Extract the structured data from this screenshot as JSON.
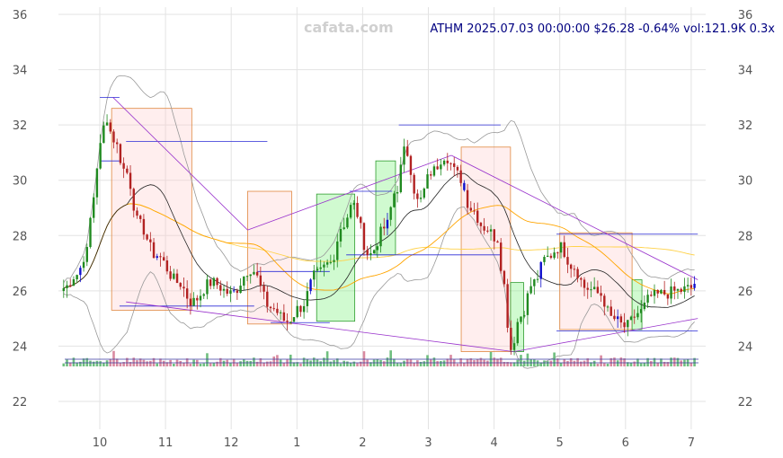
{
  "watermark": "cafata.com",
  "header": "ATHM 2025.07.03 00:00:00 $26.28 -0.64% vol:121.9K 0.3x",
  "chart_data": {
    "type": "candlestick",
    "ticker": "ATHM",
    "ylim": [
      21.2,
      36
    ],
    "y_ticks": [
      22,
      24,
      26,
      28,
      30,
      32,
      34,
      36
    ],
    "x_ticks": [
      {
        "label": "10",
        "month": 0
      },
      {
        "label": "11",
        "month": 1
      },
      {
        "label": "12",
        "month": 2
      },
      {
        "label": "1",
        "month": 3
      },
      {
        "label": "2",
        "month": 4
      },
      {
        "label": "3",
        "month": 5
      },
      {
        "label": "4",
        "month": 6
      },
      {
        "label": "5",
        "month": 7
      },
      {
        "label": "6",
        "month": 8
      },
      {
        "label": "7",
        "month": 9
      }
    ],
    "grid": true,
    "last": {
      "date": "2025.07.03",
      "price": 26.28,
      "change_pct": -0.64,
      "volume": "121.9K",
      "volume_ratio": "0.3x"
    },
    "price_anchors": [
      [
        -0.55,
        26.1
      ],
      [
        -0.35,
        26.6
      ],
      [
        -0.2,
        27.4
      ],
      [
        -0.1,
        29.4
      ],
      [
        0.0,
        31.2
      ],
      [
        0.1,
        32.3
      ],
      [
        0.2,
        31.5
      ],
      [
        0.4,
        30.3
      ],
      [
        0.6,
        28.4
      ],
      [
        0.85,
        27.3
      ],
      [
        1.2,
        26.3
      ],
      [
        1.4,
        25.6
      ],
      [
        1.7,
        26.3
      ],
      [
        2.0,
        25.9
      ],
      [
        2.3,
        26.8
      ],
      [
        2.6,
        25.4
      ],
      [
        2.85,
        24.9
      ],
      [
        3.05,
        25.4
      ],
      [
        3.3,
        26.6
      ],
      [
        3.5,
        27.0
      ],
      [
        3.7,
        28.4
      ],
      [
        3.85,
        29.1
      ],
      [
        4.1,
        27.3
      ],
      [
        4.35,
        28.3
      ],
      [
        4.5,
        29.6
      ],
      [
        4.65,
        31.1
      ],
      [
        4.85,
        29.2
      ],
      [
        5.05,
        30.3
      ],
      [
        5.25,
        30.9
      ],
      [
        5.45,
        30.2
      ],
      [
        5.65,
        29.0
      ],
      [
        5.85,
        28.3
      ],
      [
        6.05,
        27.9
      ],
      [
        6.15,
        26.2
      ],
      [
        6.25,
        23.9
      ],
      [
        6.4,
        25.1
      ],
      [
        6.6,
        26.3
      ],
      [
        6.8,
        27.2
      ],
      [
        7.0,
        27.6
      ],
      [
        7.2,
        26.9
      ],
      [
        7.4,
        26.1
      ],
      [
        7.6,
        25.9
      ],
      [
        7.8,
        25.0
      ],
      [
        8.0,
        24.7
      ],
      [
        8.2,
        25.2
      ],
      [
        8.4,
        25.8
      ],
      [
        8.6,
        25.9
      ],
      [
        8.8,
        26.0
      ],
      [
        9.0,
        26.1
      ],
      [
        9.05,
        26.28
      ]
    ],
    "zones": [
      {
        "type": "bear",
        "x0": 0.18,
        "x1": 1.4,
        "y0": 25.3,
        "y1": 32.6
      },
      {
        "type": "bear",
        "x0": 2.25,
        "x1": 2.92,
        "y0": 24.8,
        "y1": 29.6
      },
      {
        "type": "bull",
        "x0": 3.3,
        "x1": 3.88,
        "y0": 24.9,
        "y1": 29.5
      },
      {
        "type": "bull",
        "x0": 4.2,
        "x1": 4.5,
        "y0": 27.3,
        "y1": 30.7
      },
      {
        "type": "bear",
        "x0": 5.5,
        "x1": 6.25,
        "y0": 23.8,
        "y1": 31.2
      },
      {
        "type": "bull",
        "x0": 6.25,
        "x1": 6.45,
        "y0": 23.8,
        "y1": 26.3
      },
      {
        "type": "bear",
        "x0": 7.0,
        "x1": 8.1,
        "y0": 24.6,
        "y1": 28.1
      },
      {
        "type": "bull",
        "x0": 8.1,
        "x1": 8.25,
        "y0": 24.6,
        "y1": 26.4
      }
    ],
    "levels": [
      {
        "x0": 0.0,
        "x1": 0.3,
        "y": 33.0
      },
      {
        "x0": 0.0,
        "x1": 0.3,
        "y": 30.7
      },
      {
        "x0": 0.4,
        "x1": 2.55,
        "y": 31.4
      },
      {
        "x0": 0.3,
        "x1": 2.35,
        "y": 25.45
      },
      {
        "x0": 2.4,
        "x1": 3.5,
        "y": 26.7
      },
      {
        "x0": 2.6,
        "x1": 3.5,
        "y": 24.85
      },
      {
        "x0": 3.8,
        "x1": 4.45,
        "y": 29.6
      },
      {
        "x0": 3.75,
        "x1": 6.1,
        "y": 27.3
      },
      {
        "x0": 4.55,
        "x1": 6.1,
        "y": 32.0
      },
      {
        "x0": 6.95,
        "x1": 9.1,
        "y": 28.05
      },
      {
        "x0": 6.95,
        "x1": 9.1,
        "y": 24.55
      }
    ],
    "trendlines": [
      [
        [
          0.2,
          33.0
        ],
        [
          2.25,
          28.2
        ]
      ],
      [
        [
          2.25,
          28.2
        ],
        [
          5.35,
          30.9
        ]
      ],
      [
        [
          5.35,
          30.9
        ],
        [
          9.1,
          26.4
        ]
      ],
      [
        [
          0.4,
          25.6
        ],
        [
          6.3,
          23.8
        ]
      ],
      [
        [
          6.3,
          23.8
        ],
        [
          9.1,
          25.0
        ]
      ]
    ],
    "volume_band": {
      "y_top": 23.55,
      "y_bottom": 23.25
    }
  }
}
